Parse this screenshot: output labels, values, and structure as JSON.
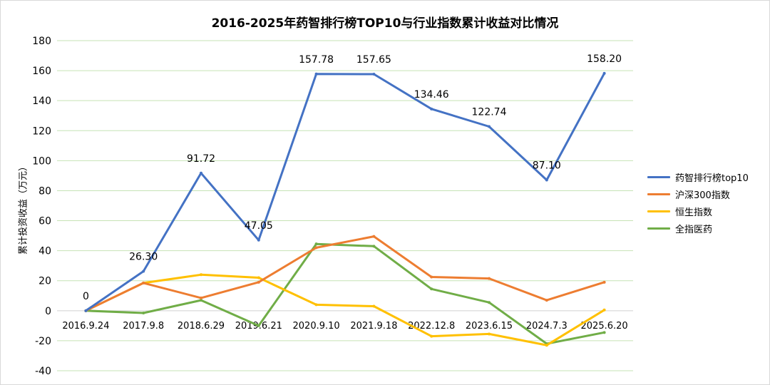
{
  "chart_data": {
    "type": "line",
    "title": "2016-2025年药智排行榜TOP10与行业指数累计收益对比情况",
    "xlabel": "",
    "ylabel": "累计投资收益（万元）",
    "ylim": [
      -40,
      180
    ],
    "yticks": [
      "180",
      "160",
      "140",
      "120",
      "100",
      "80",
      "60",
      "40",
      "20",
      "0",
      "-20",
      "-40"
    ],
    "categories": [
      "2016.9.24",
      "2017.9.8",
      "2018.6.29",
      "2019.6.21",
      "2020.9.10",
      "2021.9.18",
      "2022.12.8",
      "2023.6.15",
      "2024.7.3",
      "2025.6.20"
    ],
    "grid": true,
    "legend_position": "right",
    "series": [
      {
        "name": "药智排行榜top10",
        "color": "#4472c4",
        "values": [
          0,
          26.3,
          91.72,
          47.05,
          157.78,
          157.65,
          134.46,
          122.74,
          87.1,
          158.2
        ],
        "labels": [
          "0",
          "26.30",
          "91.72",
          "47.05",
          "157.78",
          "157.65",
          "134.46",
          "122.74",
          "87.10",
          "158.20"
        ]
      },
      {
        "name": "沪深300指数",
        "color": "#ed7d31",
        "values": [
          0,
          18.5,
          8.5,
          19,
          42,
          49.5,
          22.5,
          21.5,
          7,
          19
        ]
      },
      {
        "name": "恒生指数",
        "color": "#ffc000",
        "values": [
          0,
          18.5,
          24,
          22,
          4,
          3,
          -17,
          -15.5,
          -23,
          0.5
        ]
      },
      {
        "name": "全指医药",
        "color": "#70ad47",
        "values": [
          0,
          -1.5,
          7,
          -10,
          44.5,
          43,
          14.5,
          5.5,
          -22,
          -14.5
        ]
      }
    ]
  }
}
